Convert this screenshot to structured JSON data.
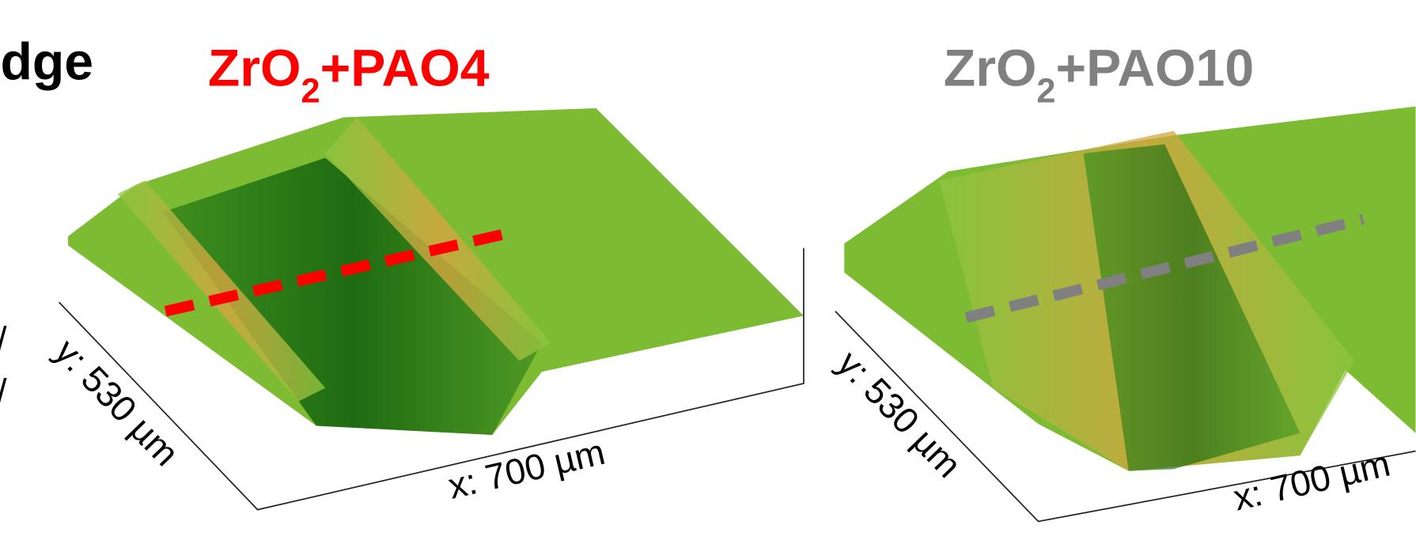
{
  "title_fragment": "dge",
  "left_fragments": [
    "/",
    "/"
  ],
  "panels": [
    {
      "title": {
        "main": "ZrO",
        "sub": "2",
        "rest": "+PAO4"
      },
      "y_axis_label": "y: 530 µm",
      "x_axis_label": "x: 700 µm"
    },
    {
      "title": {
        "main": "ZrO",
        "sub": "2",
        "rest": "+PAO10"
      },
      "y_axis_label": "y: 530 µm",
      "x_axis_label": "x: 700 µm"
    }
  ]
}
